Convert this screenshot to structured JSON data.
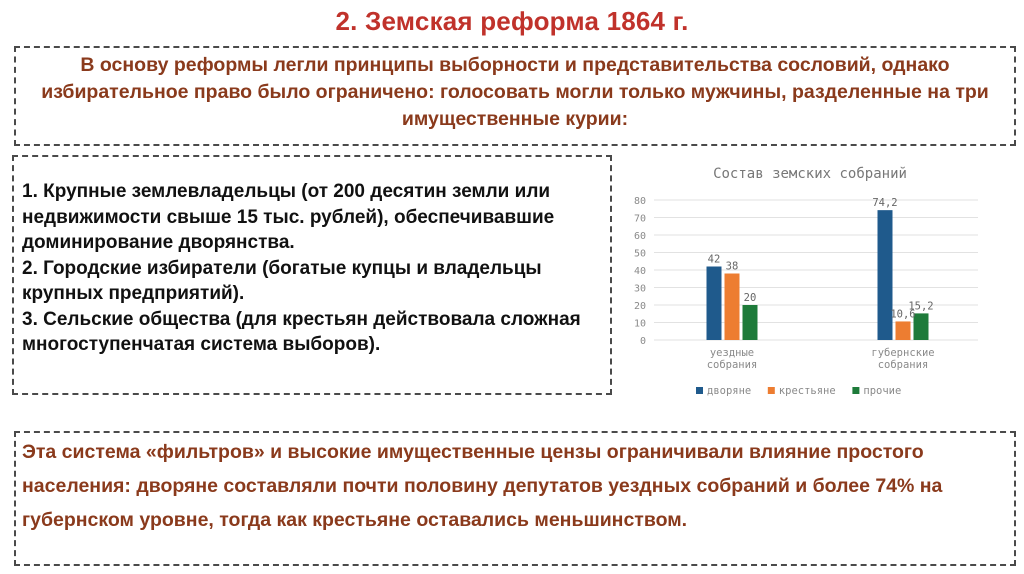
{
  "slide": {
    "title": "2. Земская реформа 1864 г.",
    "intro": "В основу реформы легли принципы выборности и представительства сословий, однако избирательное право было ограничено: голосовать могли только мужчины, разделенные на три имущественные курии:",
    "curiae": [
      "1. Крупные землевладельцы (от 200 десятин земли или недвижимости свыше 15 тыс. рублей), обеспечивавшие доминирование дворянства.",
      "2. Городские избиратели (богатые купцы и владельцы крупных предприятий).",
      "3. Сельские общества (для крестьян действовала сложная многоступенчатая система выборов)."
    ],
    "conclusion": "Эта система «фильтров» и высокие имущественные цензы ограничивали влияние простого населения: дворяне составляли почти половину депутатов уездных собраний и более 74% на губернском уровне, тогда как крестьяне оставались меньшинством."
  },
  "chart_data": {
    "type": "bar",
    "title": "Состав земских собраний",
    "categories": [
      "уездные собрания",
      "губернские собрания"
    ],
    "category_lines": [
      [
        "уездные",
        "собрания"
      ],
      [
        "губернские",
        "собрания"
      ]
    ],
    "series": [
      {
        "name": "дворяне",
        "values": [
          42,
          74.2
        ],
        "labels": [
          "42",
          "74,2"
        ],
        "color": "#1f5a8c"
      },
      {
        "name": "крестьяне",
        "values": [
          38,
          10.6
        ],
        "labels": [
          "38",
          "10,6"
        ],
        "color": "#ed7d31"
      },
      {
        "name": "прочие",
        "values": [
          20,
          15.2
        ],
        "labels": [
          "20",
          "15,2"
        ],
        "color": "#1e7b3a"
      }
    ],
    "yticks": [
      "0",
      "10",
      "20",
      "30",
      "40",
      "50",
      "60",
      "70",
      "80"
    ],
    "ylim": [
      0,
      80
    ],
    "grid": true,
    "legend": "bottom"
  }
}
